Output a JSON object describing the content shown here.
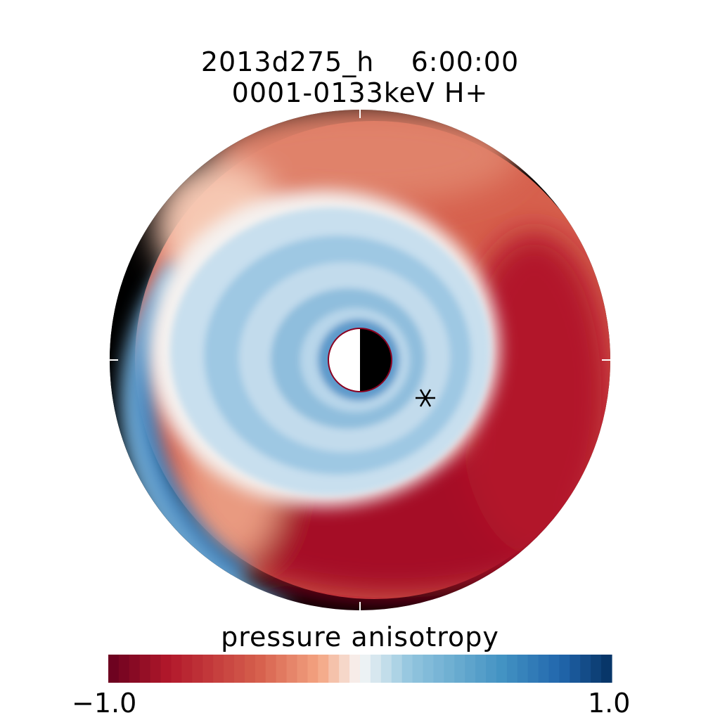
{
  "chart_data": {
    "type": "heatmap",
    "projection": "polar",
    "title_line1": "2013d275_h    6:00:00",
    "title_line2": "0001-0133keV H+",
    "colorbar": {
      "label": "pressure anisotropy",
      "min_label": "−1.0",
      "max_label": "1.0",
      "vmin": -1.0,
      "vmax": 1.0,
      "low_color": "#67001f",
      "mid_color": "#f7f7f7",
      "high_color": "#053061"
    },
    "field": {
      "description_values": {
        "inner_ring": 0.45,
        "dayside_outer": -0.55,
        "nightside_outer": -0.8,
        "dawn_edge": 0.4
      }
    },
    "marker": {
      "symbol": "asterisk"
    },
    "planet": {
      "day_color": "#ffffff",
      "night_color": "#000000"
    }
  }
}
